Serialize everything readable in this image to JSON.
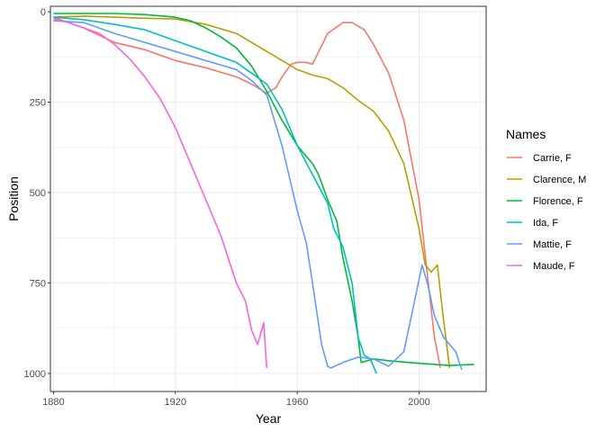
{
  "chart_data": {
    "type": "line",
    "xlabel": "Year",
    "ylabel": "Position",
    "xlim": [
      1879,
      2022
    ],
    "ylim": [
      -15,
      1050
    ],
    "y_reversed": true,
    "grid": true,
    "legend_placement": "right",
    "xticks": [
      1880,
      1920,
      1960,
      2000
    ],
    "yticks": [
      0,
      250,
      500,
      750,
      1000
    ],
    "xtick_labels": [
      "1880",
      "1920",
      "1960",
      "2000"
    ],
    "ytick_labels": [
      "0",
      "250",
      "500",
      "750",
      "1000"
    ],
    "legend_title": "Names",
    "series": [
      {
        "name": "Carrie, F",
        "color": "#F8766D",
        "x": [
          1880,
          1890,
          1900,
          1910,
          1920,
          1930,
          1940,
          1945,
          1950,
          1953,
          1955,
          1958,
          1960,
          1963,
          1965,
          1970,
          1975,
          1978,
          1982,
          1985,
          1990,
          1995,
          2000,
          2003,
          2005,
          2007
        ],
        "y": [
          15,
          45,
          85,
          105,
          135,
          155,
          180,
          200,
          225,
          210,
          180,
          145,
          140,
          140,
          145,
          60,
          30,
          30,
          50,
          90,
          170,
          300,
          520,
          750,
          900,
          985
        ]
      },
      {
        "name": "Clarence, M",
        "color": "#B79F00",
        "x": [
          1880,
          1890,
          1900,
          1910,
          1920,
          1930,
          1940,
          1950,
          1960,
          1965,
          1970,
          1975,
          1980,
          1985,
          1990,
          1995,
          2000,
          2002,
          2004,
          2006,
          2008,
          2010
        ],
        "y": [
          15,
          12,
          15,
          18,
          20,
          35,
          60,
          110,
          160,
          175,
          185,
          210,
          245,
          275,
          330,
          420,
          600,
          700,
          720,
          700,
          850,
          985
        ]
      },
      {
        "name": "Florence, F",
        "color": "#00BA38",
        "x": [
          1880,
          1890,
          1900,
          1910,
          1920,
          1925,
          1930,
          1935,
          1940,
          1945,
          1950,
          1955,
          1960,
          1962,
          1965,
          1967,
          1970,
          1973,
          1975,
          1978,
          1980,
          1981,
          1985,
          1990,
          2000,
          2010,
          2018
        ],
        "y": [
          5,
          5,
          5,
          8,
          15,
          25,
          45,
          70,
          100,
          150,
          220,
          300,
          370,
          390,
          420,
          450,
          520,
          580,
          680,
          800,
          900,
          970,
          960,
          965,
          972,
          978,
          975
        ]
      },
      {
        "name": "Ida, F",
        "color": "#00BFC4",
        "x": [
          1880,
          1890,
          1900,
          1910,
          1920,
          1930,
          1940,
          1945,
          1950,
          1955,
          1960,
          1965,
          1970,
          1972,
          1975,
          1978,
          1980,
          1982,
          1984,
          1986
        ],
        "y": [
          15,
          22,
          35,
          50,
          80,
          110,
          140,
          170,
          200,
          270,
          370,
          450,
          530,
          600,
          650,
          750,
          900,
          950,
          960,
          1000
        ]
      },
      {
        "name": "Mattie, F",
        "color": "#619CFF",
        "x": [
          1880,
          1890,
          1900,
          1910,
          1920,
          1930,
          1940,
          1945,
          1950,
          1955,
          1960,
          1963,
          1965,
          1968,
          1970,
          1971,
          1975,
          1980,
          1985,
          1990,
          1995,
          2000,
          2001,
          2003,
          2005,
          2008,
          2010,
          2012,
          2014
        ],
        "y": [
          25,
          30,
          60,
          85,
          110,
          135,
          160,
          190,
          230,
          370,
          550,
          640,
          750,
          920,
          980,
          985,
          970,
          955,
          960,
          980,
          940,
          740,
          700,
          760,
          840,
          900,
          920,
          940,
          990
        ]
      },
      {
        "name": "Maude, F",
        "color": "#F564E3",
        "x": [
          1880,
          1885,
          1890,
          1895,
          1900,
          1905,
          1910,
          1915,
          1920,
          1925,
          1930,
          1935,
          1940,
          1943,
          1945,
          1947,
          1949,
          1950
        ],
        "y": [
          20,
          30,
          45,
          60,
          90,
          130,
          180,
          240,
          320,
          420,
          520,
          620,
          750,
          800,
          880,
          920,
          860,
          985
        ]
      }
    ]
  }
}
